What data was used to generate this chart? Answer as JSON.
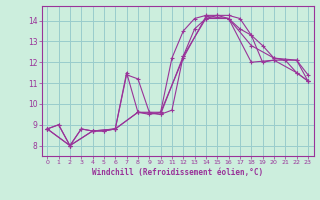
{
  "xlabel": "Windchill (Refroidissement éolien,°C)",
  "xlim": [
    -0.5,
    23.5
  ],
  "ylim": [
    7.5,
    14.7
  ],
  "xticks": [
    0,
    1,
    2,
    3,
    4,
    5,
    6,
    7,
    8,
    9,
    10,
    11,
    12,
    13,
    14,
    15,
    16,
    17,
    18,
    19,
    20,
    21,
    22,
    23
  ],
  "yticks": [
    8,
    9,
    10,
    11,
    12,
    13,
    14
  ],
  "bg_color": "#cceedd",
  "line_color": "#993399",
  "grid_color": "#99cccc",
  "lines": [
    {
      "x": [
        0,
        1,
        2,
        3,
        4,
        5,
        6,
        7,
        8,
        9,
        10,
        11,
        12,
        13,
        14,
        15,
        16,
        17,
        18,
        19,
        20,
        21,
        22,
        23
      ],
      "y": [
        8.8,
        9.0,
        8.0,
        8.8,
        8.7,
        8.7,
        8.8,
        11.4,
        11.2,
        9.6,
        9.5,
        9.7,
        12.3,
        13.6,
        14.1,
        14.25,
        14.25,
        14.1,
        13.3,
        12.8,
        12.2,
        12.1,
        12.1,
        11.4
      ]
    },
    {
      "x": [
        0,
        1,
        2,
        3,
        4,
        5,
        6,
        7,
        8,
        9,
        10,
        11,
        12,
        13,
        14,
        15,
        16,
        17,
        18,
        19,
        20,
        21,
        22,
        23
      ],
      "y": [
        8.8,
        9.0,
        8.0,
        8.8,
        8.7,
        8.7,
        8.8,
        11.5,
        9.6,
        9.5,
        9.6,
        12.2,
        13.5,
        14.1,
        14.25,
        14.25,
        14.1,
        13.6,
        13.3,
        12.0,
        12.1,
        12.1,
        11.5,
        11.1
      ]
    },
    {
      "x": [
        0,
        2,
        4,
        6,
        8,
        10,
        12,
        14,
        16,
        18,
        20,
        22,
        23
      ],
      "y": [
        8.8,
        8.0,
        8.7,
        8.8,
        9.6,
        9.5,
        12.3,
        14.1,
        14.1,
        12.8,
        12.2,
        12.1,
        11.1
      ]
    },
    {
      "x": [
        0,
        2,
        4,
        6,
        8,
        10,
        12,
        14,
        16,
        18,
        20,
        22,
        23
      ],
      "y": [
        8.8,
        8.0,
        8.7,
        8.8,
        9.6,
        9.6,
        12.2,
        14.2,
        14.1,
        12.0,
        12.1,
        11.5,
        11.1
      ]
    }
  ]
}
